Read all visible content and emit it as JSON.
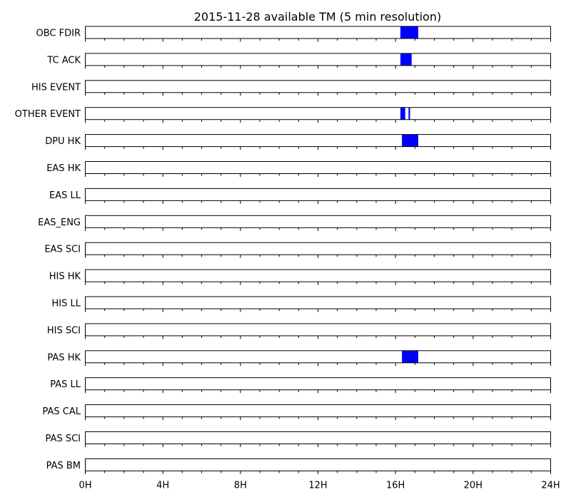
{
  "chart_data": {
    "type": "timeline",
    "title": "2015-11-28 available TM (5 min resolution)",
    "x_unit": "hour",
    "xlim": [
      0,
      24
    ],
    "xticks": [
      {
        "value": 0,
        "label": "0H"
      },
      {
        "value": 4,
        "label": "4H"
      },
      {
        "value": 8,
        "label": "8H"
      },
      {
        "value": 12,
        "label": "12H"
      },
      {
        "value": 16,
        "label": "16H"
      },
      {
        "value": 20,
        "label": "20H"
      },
      {
        "value": 24,
        "label": "24H"
      }
    ],
    "bar_color": "#0000ff",
    "rows": [
      {
        "label": "OBC FDIR",
        "intervals": [
          [
            16.25,
            17.17
          ]
        ]
      },
      {
        "label": "TC ACK",
        "intervals": [
          [
            16.25,
            16.83
          ]
        ]
      },
      {
        "label": "HIS EVENT",
        "intervals": []
      },
      {
        "label": "OTHER EVENT",
        "intervals": [
          [
            16.25,
            16.5
          ],
          [
            16.67,
            16.75
          ]
        ]
      },
      {
        "label": "DPU HK",
        "intervals": [
          [
            16.33,
            17.17
          ]
        ]
      },
      {
        "label": "EAS HK",
        "intervals": []
      },
      {
        "label": "EAS LL",
        "intervals": []
      },
      {
        "label": "EAS_ENG",
        "intervals": []
      },
      {
        "label": "EAS SCI",
        "intervals": []
      },
      {
        "label": "HIS HK",
        "intervals": []
      },
      {
        "label": "HIS LL",
        "intervals": []
      },
      {
        "label": "HIS SCI",
        "intervals": []
      },
      {
        "label": "PAS HK",
        "intervals": [
          [
            16.33,
            17.17
          ]
        ]
      },
      {
        "label": "PAS LL",
        "intervals": []
      },
      {
        "label": "PAS CAL",
        "intervals": []
      },
      {
        "label": "PAS SCI",
        "intervals": []
      },
      {
        "label": "PAS BM",
        "intervals": []
      }
    ]
  }
}
